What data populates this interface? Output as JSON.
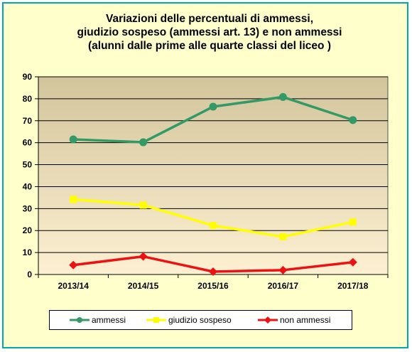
{
  "chart_data": {
    "type": "line",
    "title_lines": [
      "Variazioni delle percentuali di ammessi,",
      "giudizio sospeso (ammessi art. 13) e non ammessi",
      "(alunni dalle prime alle quarte classi del liceo )"
    ],
    "categories": [
      "2013/14",
      "2014/15",
      "2015/16",
      "2016/17",
      "2017/18"
    ],
    "ylim": [
      0,
      90
    ],
    "yticks": [
      0,
      10,
      20,
      30,
      40,
      50,
      60,
      70,
      80,
      90
    ],
    "grid": true,
    "legend_position": "bottom",
    "series": [
      {
        "name": "ammessi",
        "values": [
          61.5,
          60.2,
          76.4,
          80.8,
          70.3
        ],
        "color": "#339966",
        "marker": "circle"
      },
      {
        "name": "giudizio sospeso",
        "values": [
          34.2,
          31.6,
          22.3,
          17.2,
          23.9
        ],
        "color": "#ffff00",
        "marker": "square"
      },
      {
        "name": "non ammessi",
        "values": [
          4.3,
          8.2,
          1.3,
          2.0,
          5.6
        ],
        "color": "#ee1111",
        "marker": "diamond"
      }
    ]
  },
  "colors": {
    "frame_border": "#00a8b0",
    "frame_background": "#ffffcc",
    "plot_top": "#d2c49a",
    "plot_bottom": "#fdf0d2"
  }
}
